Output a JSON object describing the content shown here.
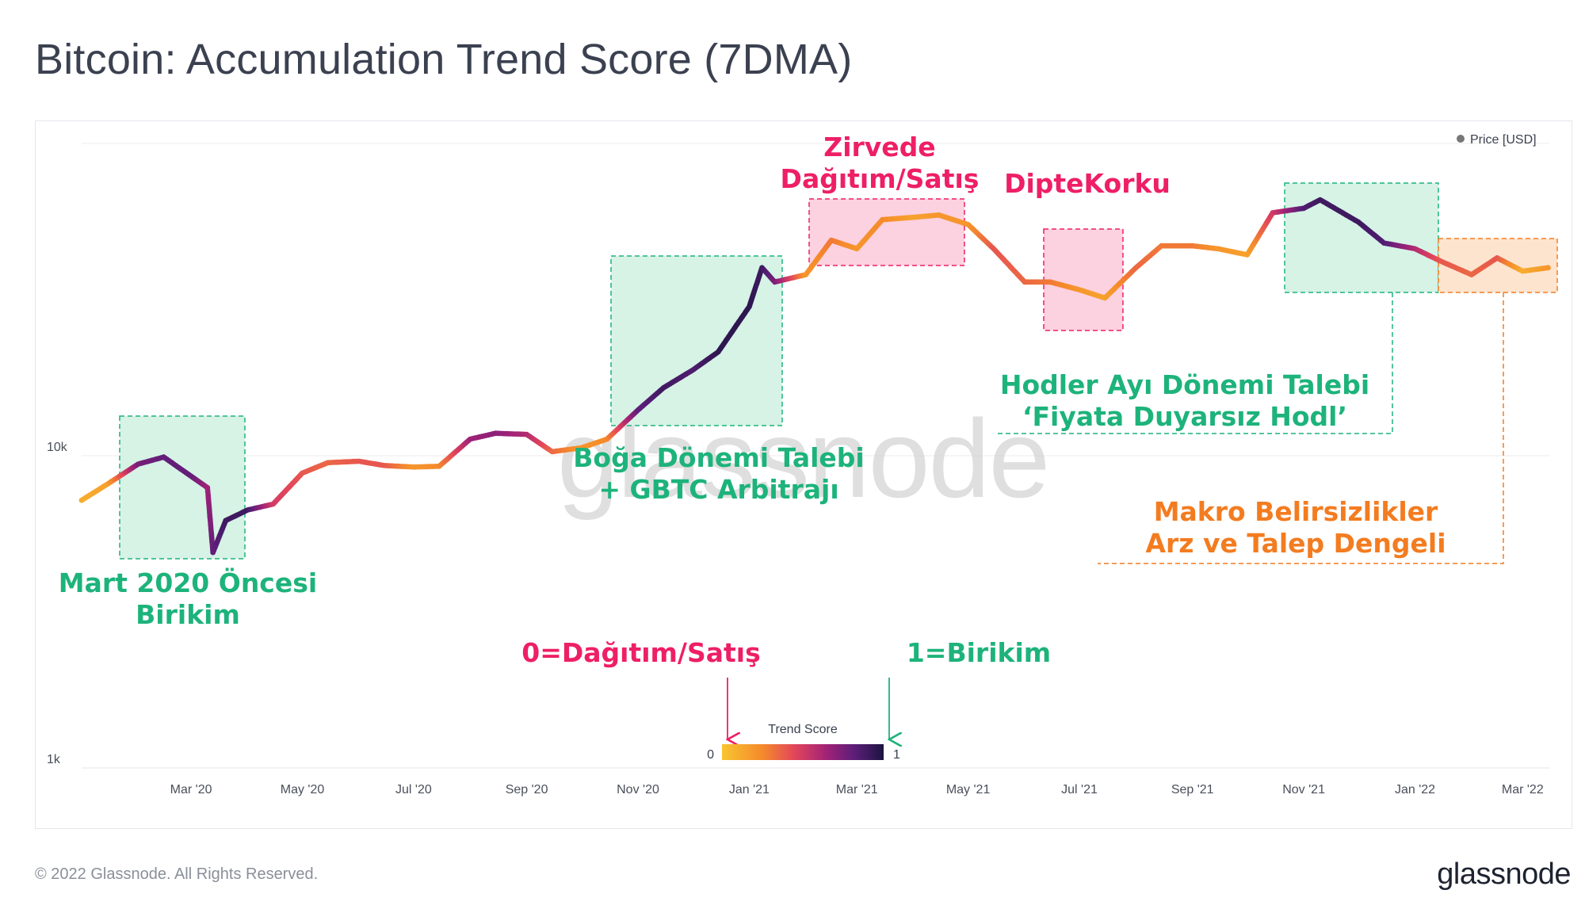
{
  "title": "Bitcoin: Accumulation Trend Score (7DMA)",
  "footer": {
    "copyright": "© 2022 Glassnode. All Rights Reserved.",
    "brand": "glassnode"
  },
  "watermark": "glassnode",
  "colors": {
    "green": "#1db37b",
    "pink": "#ee1f66",
    "orange": "#f37c20",
    "green_fill": "#d6f3e6",
    "pink_fill": "#fcd1e0",
    "orange_fill": "#fde4cf",
    "gradient": [
      "#f8c531",
      "#f58a2b",
      "#e2455b",
      "#a02277",
      "#5b1e79",
      "#1c1440"
    ]
  },
  "legend_bar": {
    "title": "Trend Score",
    "min_label": "0",
    "max_label": "1"
  },
  "annotations": {
    "pre_march": [
      "Mart 2020 Öncesi",
      "Birikim"
    ],
    "bull": [
      "Boğa Dönemi Talebi",
      "+ GBTC Arbitrajı"
    ],
    "top": [
      "Zirvede",
      "Dağıtım/Satış"
    ],
    "bottom": "DipteKorku",
    "hodler": [
      "Hodler Ayı Dönemi Talebi",
      "‘Fiyata Duyarsız Hodl’"
    ],
    "macro": [
      "Makro Belirsizlikler",
      "Arz ve Talep Dengeli"
    ],
    "zero_label": "0=Dağıtım/Satış",
    "one_label": "1=Birikim"
  },
  "chart_data": {
    "type": "scatter",
    "title": "Bitcoin: Accumulation Trend Score (7DMA)",
    "legend": [
      {
        "name": "Price [USD]",
        "color": "#777777"
      }
    ],
    "legend_placement": "top-right",
    "x_ticks": [
      "Mar '20",
      "May '20",
      "Jul '20",
      "Sep '20",
      "Nov '20",
      "Jan '21",
      "Mar '21",
      "May '21",
      "Jul '21",
      "Sep '21",
      "Nov '21",
      "Jan '22",
      "Mar '22"
    ],
    "y_scale": "log",
    "y_ticks": [
      "1k",
      "10k"
    ],
    "color_scale": {
      "name": "Trend Score",
      "min": 0,
      "max": 1
    },
    "x": [
      "2020-01-01",
      "2020-01-15",
      "2020-02-01",
      "2020-02-15",
      "2020-03-01",
      "2020-03-10",
      "2020-03-13",
      "2020-03-20",
      "2020-04-01",
      "2020-04-15",
      "2020-05-01",
      "2020-05-15",
      "2020-06-01",
      "2020-06-15",
      "2020-07-01",
      "2020-07-15",
      "2020-08-01",
      "2020-08-15",
      "2020-09-01",
      "2020-09-15",
      "2020-10-01",
      "2020-10-15",
      "2020-11-01",
      "2020-11-15",
      "2020-12-01",
      "2020-12-15",
      "2021-01-01",
      "2021-01-08",
      "2021-01-15",
      "2021-02-01",
      "2021-02-15",
      "2021-03-01",
      "2021-03-15",
      "2021-04-01",
      "2021-04-15",
      "2021-05-01",
      "2021-05-15",
      "2021-06-01",
      "2021-06-15",
      "2021-07-01",
      "2021-07-15",
      "2021-08-01",
      "2021-08-15",
      "2021-09-01",
      "2021-09-15",
      "2021-10-01",
      "2021-10-15",
      "2021-11-01",
      "2021-11-10",
      "2021-12-01",
      "2021-12-15",
      "2022-01-01",
      "2022-01-15",
      "2022-02-01",
      "2022-02-15",
      "2022-03-01",
      "2022-03-15"
    ],
    "y": [
      7200,
      8100,
      9400,
      9900,
      8600,
      7900,
      4900,
      6200,
      6700,
      7000,
      8800,
      9500,
      9600,
      9300,
      9200,
      9250,
      11300,
      11800,
      11700,
      10300,
      10600,
      11300,
      14000,
      16500,
      18800,
      21500,
      30000,
      40000,
      36000,
      38000,
      49000,
      46000,
      57000,
      58000,
      59000,
      55000,
      46000,
      36000,
      36000,
      34000,
      32000,
      40000,
      47000,
      47000,
      46000,
      44000,
      60000,
      62000,
      66000,
      56000,
      48000,
      46000,
      42000,
      38000,
      43000,
      39000,
      40000
    ],
    "trend_score": [
      0.1,
      0.15,
      0.75,
      0.8,
      0.8,
      0.65,
      0.8,
      0.9,
      0.9,
      0.5,
      0.4,
      0.35,
      0.4,
      0.4,
      0.2,
      0.25,
      0.65,
      0.7,
      0.6,
      0.35,
      0.2,
      0.25,
      0.8,
      0.9,
      0.85,
      0.95,
      0.95,
      0.9,
      0.75,
      0.2,
      0.3,
      0.2,
      0.25,
      0.15,
      0.2,
      0.2,
      0.4,
      0.35,
      0.3,
      0.2,
      0.15,
      0.35,
      0.3,
      0.3,
      0.2,
      0.15,
      0.5,
      0.85,
      0.9,
      0.9,
      0.85,
      0.6,
      0.4,
      0.35,
      0.4,
      0.1,
      0.2
    ]
  }
}
